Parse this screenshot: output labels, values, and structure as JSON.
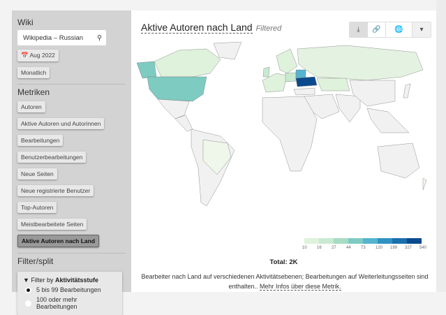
{
  "sidebar": {
    "wiki_title": "Wiki",
    "wiki_value": "Wikipedia – Russian",
    "date": "Aug 2022",
    "granularity": "Monatlich",
    "metrics_title": "Metriken",
    "metrics": [
      "Autoren",
      "Aktive Autoren und Autorinnen",
      "Bearbeitungen",
      "Benutzerbearbeitungen",
      "Neue Seiten",
      "Neue registrierte Benutzer",
      "Top-Autoren",
      "Meistbearbeitete Seiten",
      "Aktive Autoren nach Land"
    ],
    "active_metric": "Aktive Autoren nach Land",
    "filter_title": "Filter/split",
    "filter_label": "Filter by",
    "filter_dimension": "Aktivitätsstufe",
    "filter_options": [
      {
        "label": "5 bis 99 Bearbeitungen",
        "selected": true
      },
      {
        "label": "100 oder mehr Bearbeitungen",
        "selected": false
      }
    ]
  },
  "main": {
    "title": "Aktive Autoren nach Land",
    "badge": "Filtered",
    "tools": [
      "download-icon",
      "link-icon",
      "globe-icon",
      "caret-down-icon"
    ],
    "legend": {
      "ticks": [
        "10",
        "16",
        "27",
        "44",
        "73",
        "120",
        "199",
        "327",
        "540"
      ],
      "colors": [
        "#dff2dc",
        "#c8ead0",
        "#a6dcc3",
        "#7dcbc1",
        "#55b4cf",
        "#2f92c2",
        "#1a6fad",
        "#0b4a8c"
      ]
    },
    "total": "Total: 2K",
    "description": "Bearbeiter nach Land auf verschiedenen Aktivitätsebenen; Bearbeitungen auf Weiterleitungsseiten sind enthalten..",
    "more_link": "Mehr Infos über diese Metrik."
  }
}
